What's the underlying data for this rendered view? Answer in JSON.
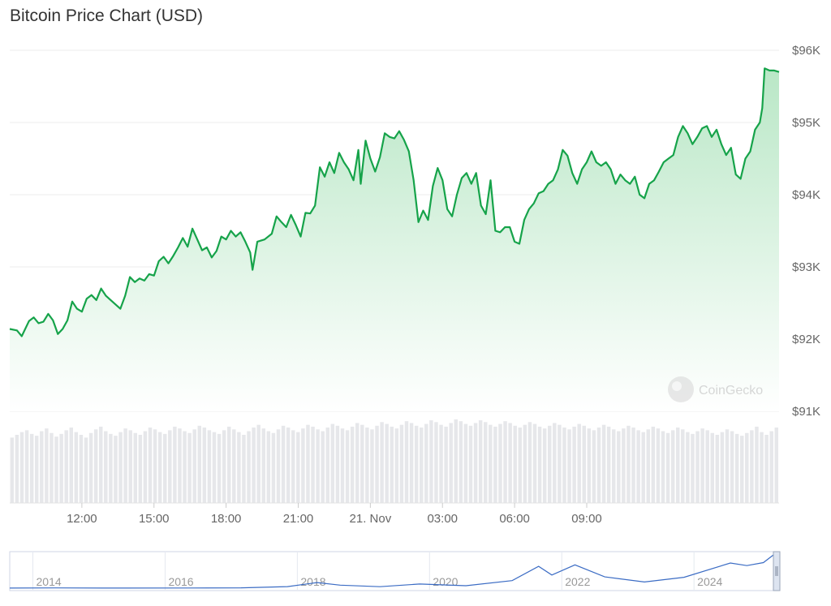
{
  "title": "Bitcoin Price Chart (USD)",
  "watermark": "CoinGecko",
  "colors": {
    "line": "#16a34a",
    "area_top": "#b9e7c6",
    "area_bottom": "#ffffff",
    "volume": "#e6e7ea",
    "navigator_line": "#3b6cc4",
    "grid": "#eeeeee",
    "axis_text": "#666666"
  },
  "chart_data": [
    {
      "type": "area",
      "title": "Bitcoin Price Chart (USD)",
      "xlabel": "",
      "ylabel": "",
      "ylim": [
        91000,
        96000
      ],
      "y_ticks": [
        "$96K",
        "$95K",
        "$94K",
        "$93K",
        "$92K",
        "$91K"
      ],
      "x_ticks": [
        "12:00",
        "15:00",
        "18:00",
        "21:00",
        "21. Nov",
        "03:00",
        "06:00",
        "09:00"
      ],
      "x_unit": "hours since 2024-11-20 09:00",
      "grid": true,
      "series": [
        {
          "points": [
            [
              0.0,
              92140
            ],
            [
              0.3,
              92120
            ],
            [
              0.5,
              92040
            ],
            [
              0.8,
              92250
            ],
            [
              1.0,
              92300
            ],
            [
              1.2,
              92220
            ],
            [
              1.4,
              92240
            ],
            [
              1.6,
              92350
            ],
            [
              1.8,
              92260
            ],
            [
              2.0,
              92070
            ],
            [
              2.2,
              92140
            ],
            [
              2.4,
              92260
            ],
            [
              2.6,
              92520
            ],
            [
              2.8,
              92420
            ],
            [
              3.0,
              92380
            ],
            [
              3.2,
              92560
            ],
            [
              3.4,
              92610
            ],
            [
              3.6,
              92540
            ],
            [
              3.8,
              92700
            ],
            [
              4.0,
              92600
            ],
            [
              4.2,
              92540
            ],
            [
              4.4,
              92480
            ],
            [
              4.6,
              92420
            ],
            [
              4.8,
              92600
            ],
            [
              5.0,
              92860
            ],
            [
              5.2,
              92790
            ],
            [
              5.4,
              92840
            ],
            [
              5.6,
              92810
            ],
            [
              5.8,
              92900
            ],
            [
              6.0,
              92880
            ],
            [
              6.2,
              93080
            ],
            [
              6.4,
              93140
            ],
            [
              6.6,
              93050
            ],
            [
              6.8,
              93150
            ],
            [
              7.0,
              93270
            ],
            [
              7.2,
              93400
            ],
            [
              7.4,
              93280
            ],
            [
              7.6,
              93530
            ],
            [
              7.8,
              93380
            ],
            [
              8.0,
              93230
            ],
            [
              8.2,
              93270
            ],
            [
              8.4,
              93130
            ],
            [
              8.6,
              93220
            ],
            [
              8.8,
              93420
            ],
            [
              9.0,
              93380
            ],
            [
              9.2,
              93500
            ],
            [
              9.4,
              93420
            ],
            [
              9.6,
              93480
            ],
            [
              9.8,
              93350
            ],
            [
              10.0,
              93200
            ],
            [
              10.1,
              92960
            ],
            [
              10.3,
              93350
            ],
            [
              10.6,
              93380
            ],
            [
              10.9,
              93460
            ],
            [
              11.1,
              93700
            ],
            [
              11.3,
              93620
            ],
            [
              11.5,
              93550
            ],
            [
              11.7,
              93720
            ],
            [
              11.9,
              93580
            ],
            [
              12.1,
              93420
            ],
            [
              12.3,
              93750
            ],
            [
              12.5,
              93740
            ],
            [
              12.7,
              93850
            ],
            [
              12.9,
              94380
            ],
            [
              13.1,
              94250
            ],
            [
              13.3,
              94450
            ],
            [
              13.5,
              94300
            ],
            [
              13.7,
              94580
            ],
            [
              13.9,
              94450
            ],
            [
              14.1,
              94350
            ],
            [
              14.3,
              94200
            ],
            [
              14.5,
              94620
            ],
            [
              14.6,
              94150
            ],
            [
              14.8,
              94750
            ],
            [
              15.0,
              94500
            ],
            [
              15.2,
              94320
            ],
            [
              15.4,
              94520
            ],
            [
              15.6,
              94850
            ],
            [
              15.8,
              94800
            ],
            [
              16.0,
              94780
            ],
            [
              16.2,
              94880
            ],
            [
              16.4,
              94760
            ],
            [
              16.6,
              94600
            ],
            [
              16.8,
              94200
            ],
            [
              17.0,
              93620
            ],
            [
              17.2,
              93780
            ],
            [
              17.4,
              93650
            ],
            [
              17.6,
              94120
            ],
            [
              17.8,
              94370
            ],
            [
              18.0,
              94200
            ],
            [
              18.2,
              93800
            ],
            [
              18.4,
              93700
            ],
            [
              18.6,
              94000
            ],
            [
              18.8,
              94230
            ],
            [
              19.0,
              94300
            ],
            [
              19.2,
              94150
            ],
            [
              19.4,
              94300
            ],
            [
              19.6,
              93850
            ],
            [
              19.8,
              93730
            ],
            [
              20.0,
              94200
            ],
            [
              20.2,
              93500
            ],
            [
              20.4,
              93480
            ],
            [
              20.6,
              93550
            ],
            [
              20.8,
              93550
            ],
            [
              21.0,
              93350
            ],
            [
              21.2,
              93320
            ],
            [
              21.4,
              93650
            ],
            [
              21.6,
              93800
            ],
            [
              21.8,
              93880
            ],
            [
              22.0,
              94020
            ],
            [
              22.2,
              94050
            ],
            [
              22.4,
              94150
            ],
            [
              22.6,
              94200
            ],
            [
              22.8,
              94350
            ],
            [
              23.0,
              94620
            ],
            [
              23.2,
              94540
            ],
            [
              23.4,
              94300
            ],
            [
              23.6,
              94150
            ],
            [
              23.8,
              94350
            ],
            [
              24.0,
              94450
            ],
            [
              24.2,
              94600
            ],
            [
              24.4,
              94450
            ],
            [
              24.6,
              94400
            ],
            [
              24.8,
              94450
            ],
            [
              25.0,
              94350
            ],
            [
              25.2,
              94150
            ],
            [
              25.4,
              94280
            ],
            [
              25.6,
              94200
            ],
            [
              25.8,
              94150
            ],
            [
              26.0,
              94250
            ],
            [
              26.2,
              94000
            ],
            [
              26.4,
              93950
            ],
            [
              26.6,
              94150
            ],
            [
              26.8,
              94200
            ],
            [
              27.0,
              94320
            ],
            [
              27.2,
              94450
            ],
            [
              27.4,
              94500
            ],
            [
              27.6,
              94550
            ],
            [
              27.8,
              94800
            ],
            [
              28.0,
              94950
            ],
            [
              28.2,
              94850
            ],
            [
              28.4,
              94700
            ],
            [
              28.6,
              94800
            ],
            [
              28.8,
              94920
            ],
            [
              29.0,
              94950
            ],
            [
              29.2,
              94800
            ],
            [
              29.4,
              94900
            ],
            [
              29.6,
              94700
            ],
            [
              29.8,
              94550
            ],
            [
              30.0,
              94650
            ],
            [
              30.2,
              94280
            ],
            [
              30.4,
              94220
            ],
            [
              30.6,
              94500
            ],
            [
              30.8,
              94600
            ],
            [
              31.0,
              94900
            ],
            [
              31.2,
              95000
            ],
            [
              31.3,
              95200
            ],
            [
              31.4,
              95750
            ],
            [
              31.6,
              95720
            ],
            [
              31.8,
              95720
            ],
            [
              32.0,
              95700
            ]
          ]
        }
      ]
    },
    {
      "type": "bar",
      "title": "",
      "series": [
        {
          "name": "",
          "values": [
            72,
            75,
            78,
            80,
            76,
            74,
            79,
            82,
            77,
            73,
            76,
            80,
            83,
            78,
            75,
            72,
            77,
            81,
            84,
            79,
            76,
            74,
            78,
            82,
            80,
            77,
            75,
            79,
            83,
            81,
            78,
            76,
            80,
            84,
            82,
            79,
            77,
            81,
            85,
            83,
            80,
            78,
            76,
            80,
            84,
            81,
            78,
            75,
            79,
            83,
            86,
            82,
            79,
            77,
            81,
            85,
            83,
            80,
            78,
            82,
            86,
            84,
            81,
            79,
            83,
            87,
            85,
            82,
            80,
            84,
            88,
            86,
            83,
            81,
            85,
            89,
            87,
            84,
            82,
            86,
            90,
            88,
            85,
            83,
            87,
            91,
            89,
            86,
            84,
            88,
            92,
            90,
            87,
            85,
            88,
            91,
            89,
            86,
            84,
            87,
            90,
            88,
            85,
            83,
            86,
            89,
            87,
            84,
            82,
            85,
            88,
            86,
            83,
            81,
            84,
            87,
            85,
            82,
            80,
            83,
            86,
            84,
            81,
            79,
            82,
            85,
            83,
            80,
            78,
            81,
            84,
            82,
            79,
            77,
            80,
            83,
            81,
            78,
            76,
            79,
            82,
            80,
            77,
            75,
            78,
            81,
            79,
            76,
            74,
            77,
            80,
            84,
            78,
            75,
            79,
            83
          ]
        }
      ]
    },
    {
      "type": "line",
      "title": "",
      "x_ticks": [
        "2014",
        "2016",
        "2018",
        "2020",
        "2022",
        "2024"
      ],
      "xlim": [
        2013.3,
        2024.9
      ],
      "series": [
        {
          "name": "",
          "x": [
            2013.3,
            2014.0,
            2015.0,
            2016.0,
            2016.8,
            2017.5,
            2017.95,
            2018.3,
            2018.9,
            2019.5,
            2020.2,
            2020.9,
            2021.3,
            2021.5,
            2021.85,
            2022.3,
            2022.9,
            2023.5,
            2024.2,
            2024.45,
            2024.7,
            2024.9
          ],
          "y": [
            150,
            600,
            250,
            430,
            900,
            4000,
            15000,
            8000,
            3800,
            11000,
            6500,
            20000,
            58000,
            35000,
            62000,
            30000,
            16500,
            29000,
            67000,
            60000,
            68000,
            95000
          ]
        }
      ]
    }
  ]
}
